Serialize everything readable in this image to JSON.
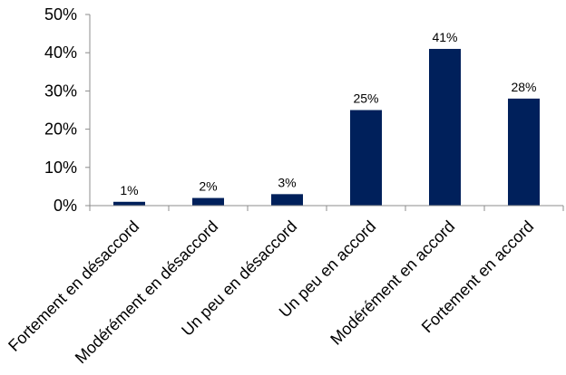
{
  "chart_data": {
    "type": "bar",
    "categories": [
      "Fortement en désaccord",
      "Modérément en désaccord",
      "Un peu en désaccord",
      "Un peu en accord",
      "Modérément en accord",
      "Fortement en accord"
    ],
    "values": [
      1,
      2,
      3,
      25,
      41,
      28
    ],
    "data_labels": [
      "1%",
      "2%",
      "3%",
      "25%",
      "41%",
      "28%"
    ],
    "ylim": [
      0,
      50
    ],
    "yticks": [
      0,
      10,
      20,
      30,
      40,
      50
    ],
    "ytick_labels": [
      "0%",
      "10%",
      "20%",
      "30%",
      "40%",
      "50%"
    ],
    "title": "",
    "xlabel": "",
    "ylabel": "",
    "grid": false,
    "legend": "none",
    "bar_color": "#00205B"
  }
}
